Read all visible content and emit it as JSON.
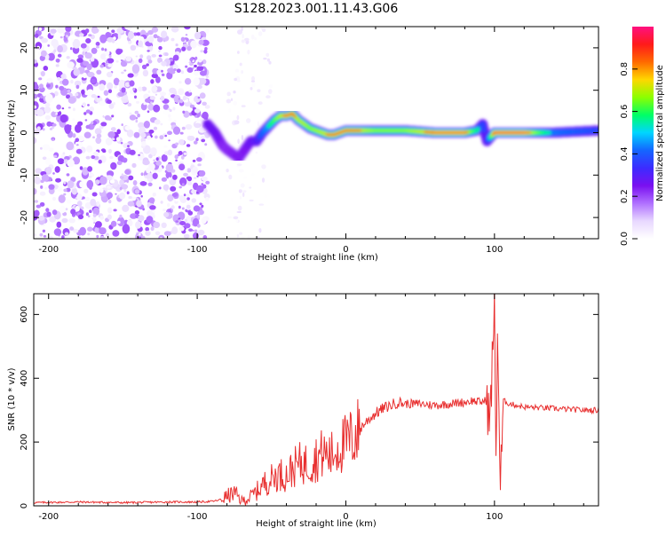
{
  "title": "S128.2023.001.11.43.G06",
  "colors": {
    "snr_line": "#e83030",
    "colormap": [
      "#ffffff",
      "#e8d8ff",
      "#b070ff",
      "#7a10f0",
      "#3d2bff",
      "#1466ff",
      "#00d6ff",
      "#00ff66",
      "#8cff00",
      "#ffd700",
      "#ff6a00",
      "#ff1a1a",
      "#ff1080"
    ]
  },
  "chart_data": [
    {
      "type": "heatmap",
      "xlabel": "Height of straight line (km)",
      "ylabel": "Frequency (Hz)",
      "xlim": [
        -210,
        170
      ],
      "ylim": [
        -25,
        25
      ],
      "xticks": [
        -200,
        -100,
        0,
        100
      ],
      "yticks": [
        -20,
        -10,
        0,
        10,
        20
      ],
      "colorbar": {
        "label": "Normalized spectral amplitude",
        "range": [
          0,
          1
        ],
        "ticks": [
          "0.0",
          "0.2",
          "0.4",
          "0.6",
          "0.8"
        ]
      },
      "noise_region": {
        "x_from": -210,
        "x_to": -93,
        "freq_from": -25,
        "freq_to": 25,
        "amplitude": 0.15
      },
      "signal_ridge": {
        "x": [
          -93,
          -88,
          -83,
          -80,
          -76,
          -72,
          -68,
          -64,
          -60,
          -56,
          -52,
          -48,
          -44,
          -40,
          -36,
          -32,
          -28,
          -24,
          -20,
          -16,
          -12,
          -8,
          -4,
          0,
          10,
          20,
          40,
          60,
          80,
          88,
          92,
          95,
          100,
          120,
          140,
          170
        ],
        "freq": [
          2,
          0,
          -3,
          -4,
          -5,
          -6,
          -4,
          -2,
          -2,
          0,
          1.5,
          3,
          4,
          4,
          4.5,
          3,
          2,
          1,
          0.5,
          0,
          -0.5,
          -0.5,
          0,
          0.5,
          0.5,
          0.5,
          0.5,
          0,
          0,
          0.5,
          2,
          -2,
          0,
          0,
          0,
          0.5
        ],
        "amplitude": [
          0.35,
          0.35,
          0.3,
          0.25,
          0.28,
          0.3,
          0.32,
          0.35,
          0.4,
          0.55,
          0.65,
          0.75,
          0.85,
          0.9,
          0.9,
          0.85,
          0.85,
          0.8,
          0.82,
          0.85,
          0.88,
          0.9,
          0.9,
          0.9,
          0.88,
          0.8,
          0.8,
          0.92,
          0.92,
          0.7,
          0.5,
          0.4,
          0.95,
          0.95,
          0.6,
          0.5
        ]
      }
    },
    {
      "type": "line",
      "xlabel": "Height of straight line (km)",
      "ylabel": "SNR (10 * v/v)",
      "xlim": [
        -210,
        170
      ],
      "ylim": [
        0,
        665
      ],
      "xticks": [
        -200,
        -100,
        0,
        100
      ],
      "yticks": [
        0,
        200,
        400,
        600
      ],
      "series": [
        {
          "x": [
            -210,
            -180,
            -150,
            -120,
            -100,
            -90,
            -85,
            -80,
            -75,
            -70,
            -65,
            -60,
            -55,
            -50,
            -45,
            -40,
            -35,
            -30,
            -25,
            -20,
            -15,
            -10,
            -5,
            0,
            5,
            10,
            15,
            20,
            25,
            30,
            35,
            40,
            50,
            60,
            70,
            80,
            85,
            90,
            95,
            97,
            99,
            100,
            101,
            102,
            104,
            106,
            110,
            120,
            140,
            160,
            170
          ],
          "y": [
            10,
            12,
            10,
            12,
            12,
            14,
            18,
            30,
            40,
            15,
            25,
            45,
            70,
            85,
            100,
            95,
            120,
            135,
            130,
            150,
            165,
            155,
            185,
            195,
            215,
            245,
            270,
            290,
            305,
            315,
            325,
            320,
            320,
            315,
            320,
            325,
            330,
            325,
            330,
            250,
            520,
            600,
            150,
            560,
            50,
            330,
            320,
            310,
            305,
            300,
            300
          ]
        }
      ]
    }
  ]
}
